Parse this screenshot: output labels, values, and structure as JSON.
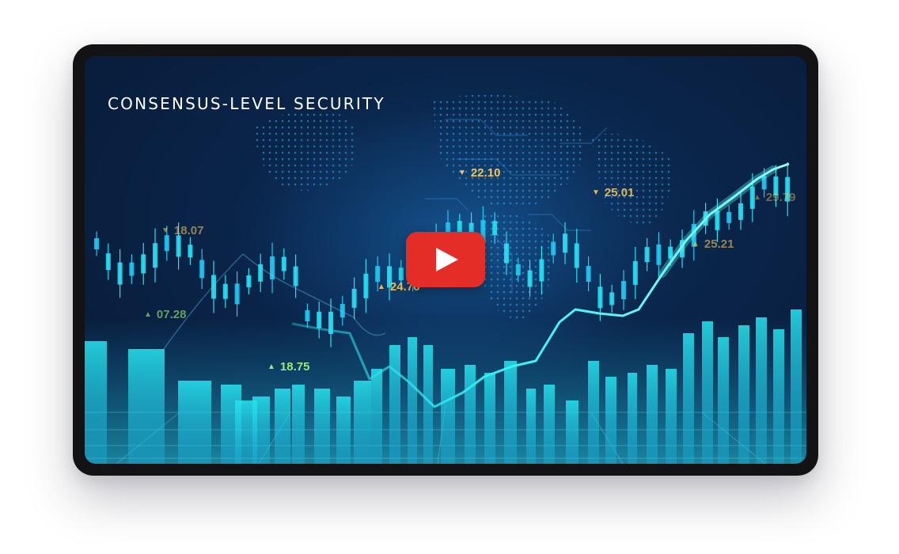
{
  "video": {
    "title": "CONSENSUS-LEVEL SECURITY"
  },
  "colors": {
    "frame": "#131316",
    "screen_bg": "#0a2448",
    "accent_cyan": "#27f0f4",
    "play_red": "#e52d27",
    "up_green": "#9ff57a",
    "down_yellow": "#f4c35c"
  },
  "icons": {
    "play": "play-icon",
    "down_triangle": "down-triangle-icon",
    "up_triangle": "up-triangle-icon"
  },
  "price_labels": [
    {
      "text": "22.10",
      "direction": "down"
    },
    {
      "text": "25.01",
      "direction": "down"
    },
    {
      "text": "18.07",
      "direction": "down"
    },
    {
      "text": "29.79",
      "direction": "up"
    },
    {
      "text": "25.21",
      "direction": "up"
    },
    {
      "text": "24.76",
      "direction": "up"
    },
    {
      "text": "07.28",
      "direction": "up"
    },
    {
      "text": "18.75",
      "direction": "up"
    }
  ]
}
